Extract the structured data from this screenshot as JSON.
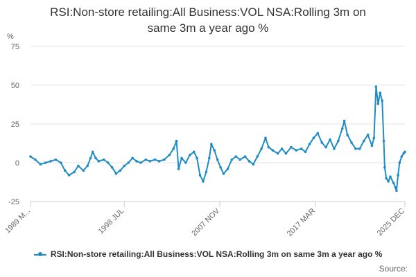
{
  "chart_data": {
    "type": "line",
    "title_line1": "RSI:Non-store retailing:All Business:VOL NSA:Rolling 3m on",
    "title_line2": "same 3m a year ago %",
    "ylabel": "%",
    "ylim": [
      -25,
      75
    ],
    "yticks": [
      -25,
      0,
      25,
      50,
      75
    ],
    "xlim": [
      1989.33,
      2025.92
    ],
    "xticks": [
      {
        "label": "1989 M...",
        "x": 1989.33
      },
      {
        "label": "1998 JUL",
        "x": 1998.5
      },
      {
        "label": "2007 NOV",
        "x": 2007.83
      },
      {
        "label": "2017 MAR",
        "x": 2017.17
      },
      {
        "label": "2025 DEC",
        "x": 2025.92
      }
    ],
    "grid": true,
    "legend_position": "bottom",
    "series": [
      {
        "name": "RSI:Non-store retailing:All Business:VOL NSA:Rolling 3m on same 3m a year ago %",
        "color": "#1f8bc4",
        "points": [
          [
            1989.33,
            4
          ],
          [
            1989.8,
            2
          ],
          [
            1990.3,
            -1
          ],
          [
            1990.8,
            0
          ],
          [
            1991.3,
            1
          ],
          [
            1991.8,
            2
          ],
          [
            1992.3,
            0
          ],
          [
            1992.7,
            -5
          ],
          [
            1993.1,
            -8
          ],
          [
            1993.6,
            -6
          ],
          [
            1994.0,
            -2
          ],
          [
            1994.5,
            -5
          ],
          [
            1994.9,
            -2
          ],
          [
            1995.2,
            3
          ],
          [
            1995.4,
            7
          ],
          [
            1995.7,
            3
          ],
          [
            1996.0,
            1
          ],
          [
            1996.5,
            2
          ],
          [
            1996.9,
            0
          ],
          [
            1997.3,
            -3
          ],
          [
            1997.7,
            -7
          ],
          [
            1998.1,
            -5
          ],
          [
            1998.5,
            -2
          ],
          [
            1998.9,
            0
          ],
          [
            1999.3,
            3
          ],
          [
            1999.7,
            1
          ],
          [
            2000.1,
            0
          ],
          [
            2000.6,
            2
          ],
          [
            2001.0,
            1
          ],
          [
            2001.5,
            2
          ],
          [
            2001.9,
            1
          ],
          [
            2002.4,
            2
          ],
          [
            2002.9,
            5
          ],
          [
            2003.3,
            9
          ],
          [
            2003.6,
            14
          ],
          [
            2003.8,
            -4
          ],
          [
            2004.1,
            3
          ],
          [
            2004.5,
            0
          ],
          [
            2004.9,
            5
          ],
          [
            2005.3,
            7
          ],
          [
            2005.6,
            3
          ],
          [
            2005.9,
            -8
          ],
          [
            2006.2,
            -12
          ],
          [
            2006.5,
            -6
          ],
          [
            2006.8,
            3
          ],
          [
            2007.0,
            12
          ],
          [
            2007.3,
            8
          ],
          [
            2007.6,
            2
          ],
          [
            2007.9,
            -3
          ],
          [
            2008.2,
            -7
          ],
          [
            2008.6,
            -4
          ],
          [
            2009.0,
            2
          ],
          [
            2009.4,
            4
          ],
          [
            2009.8,
            2
          ],
          [
            2010.3,
            4
          ],
          [
            2010.7,
            1
          ],
          [
            2011.1,
            -1
          ],
          [
            2011.5,
            4
          ],
          [
            2011.9,
            9
          ],
          [
            2012.3,
            16
          ],
          [
            2012.6,
            10
          ],
          [
            2013.0,
            8
          ],
          [
            2013.5,
            6
          ],
          [
            2013.9,
            9
          ],
          [
            2014.3,
            6
          ],
          [
            2014.8,
            10
          ],
          [
            2015.3,
            8
          ],
          [
            2015.8,
            9
          ],
          [
            2016.2,
            7
          ],
          [
            2016.6,
            12
          ],
          [
            2017.0,
            16
          ],
          [
            2017.4,
            19
          ],
          [
            2017.8,
            13
          ],
          [
            2018.2,
            10
          ],
          [
            2018.6,
            15
          ],
          [
            2019.0,
            9
          ],
          [
            2019.4,
            14
          ],
          [
            2019.8,
            22
          ],
          [
            2020.0,
            27
          ],
          [
            2020.3,
            18
          ],
          [
            2020.7,
            13
          ],
          [
            2021.1,
            9
          ],
          [
            2021.5,
            9
          ],
          [
            2021.9,
            14
          ],
          [
            2022.3,
            18
          ],
          [
            2022.7,
            11
          ],
          [
            2022.9,
            16
          ],
          [
            2023.1,
            49
          ],
          [
            2023.3,
            38
          ],
          [
            2023.5,
            45
          ],
          [
            2023.7,
            40
          ],
          [
            2023.85,
            14
          ],
          [
            2023.95,
            -3
          ],
          [
            2024.1,
            -10
          ],
          [
            2024.3,
            -12
          ],
          [
            2024.5,
            -9
          ],
          [
            2024.8,
            -13
          ],
          [
            2025.0,
            -16
          ],
          [
            2025.1,
            -18
          ],
          [
            2025.25,
            -8
          ],
          [
            2025.4,
            0
          ],
          [
            2025.6,
            4
          ],
          [
            2025.8,
            6
          ],
          [
            2025.92,
            7
          ]
        ]
      }
    ]
  },
  "legend": {
    "label": "RSI:Non-store retailing:All Business:VOL NSA:Rolling 3m on same 3m a year ago %"
  },
  "footer": {
    "source": "Source:"
  }
}
